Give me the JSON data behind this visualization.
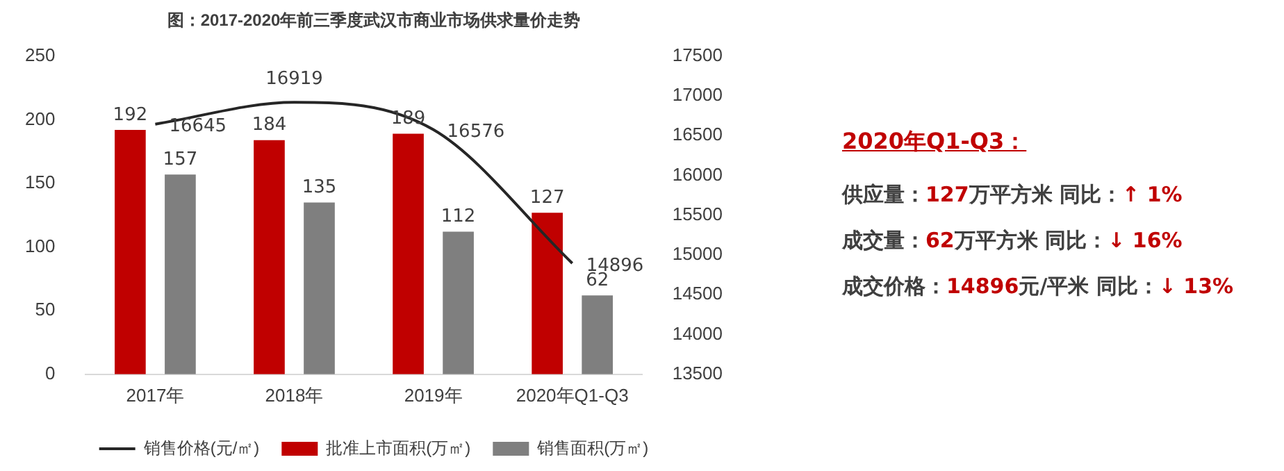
{
  "chart_data": {
    "type": "bar",
    "title": "图：2017-2020年前三季度武汉市商业市场供求量价走势",
    "categories": [
      "2017年",
      "2018年",
      "2019年",
      "2020年Q1-Q3"
    ],
    "series": [
      {
        "name": "批准上市面积(万㎡)",
        "color": "#c00000",
        "values": [
          192,
          184,
          189,
          127
        ]
      },
      {
        "name": "销售面积(万㎡)",
        "color": "#7f7f7f",
        "values": [
          157,
          135,
          112,
          62
        ]
      },
      {
        "name": "销售价格(元/㎡)",
        "type": "line",
        "axis": "y2",
        "color": "#262626",
        "values": [
          16645,
          16919,
          16576,
          14896
        ]
      }
    ],
    "ylim": [
      0,
      250
    ],
    "yticks": [
      0,
      50,
      100,
      150,
      200,
      250
    ],
    "y2lim": [
      13500,
      17500
    ],
    "y2ticks": [
      13500,
      14000,
      14500,
      15000,
      15500,
      16000,
      16500,
      17000,
      17500
    ],
    "grid": false,
    "legend": "bottom",
    "marker": "none",
    "line_style": "solid",
    "data_labels": true,
    "annotations": [
      "2020年Q1-Q3：",
      "供应量：127万平方米  同比：↑ 1%",
      "成交量：62万平方米  同比：↓ 16%",
      "成交价格：14896元/平米 同比：↓ 13%"
    ]
  }
}
